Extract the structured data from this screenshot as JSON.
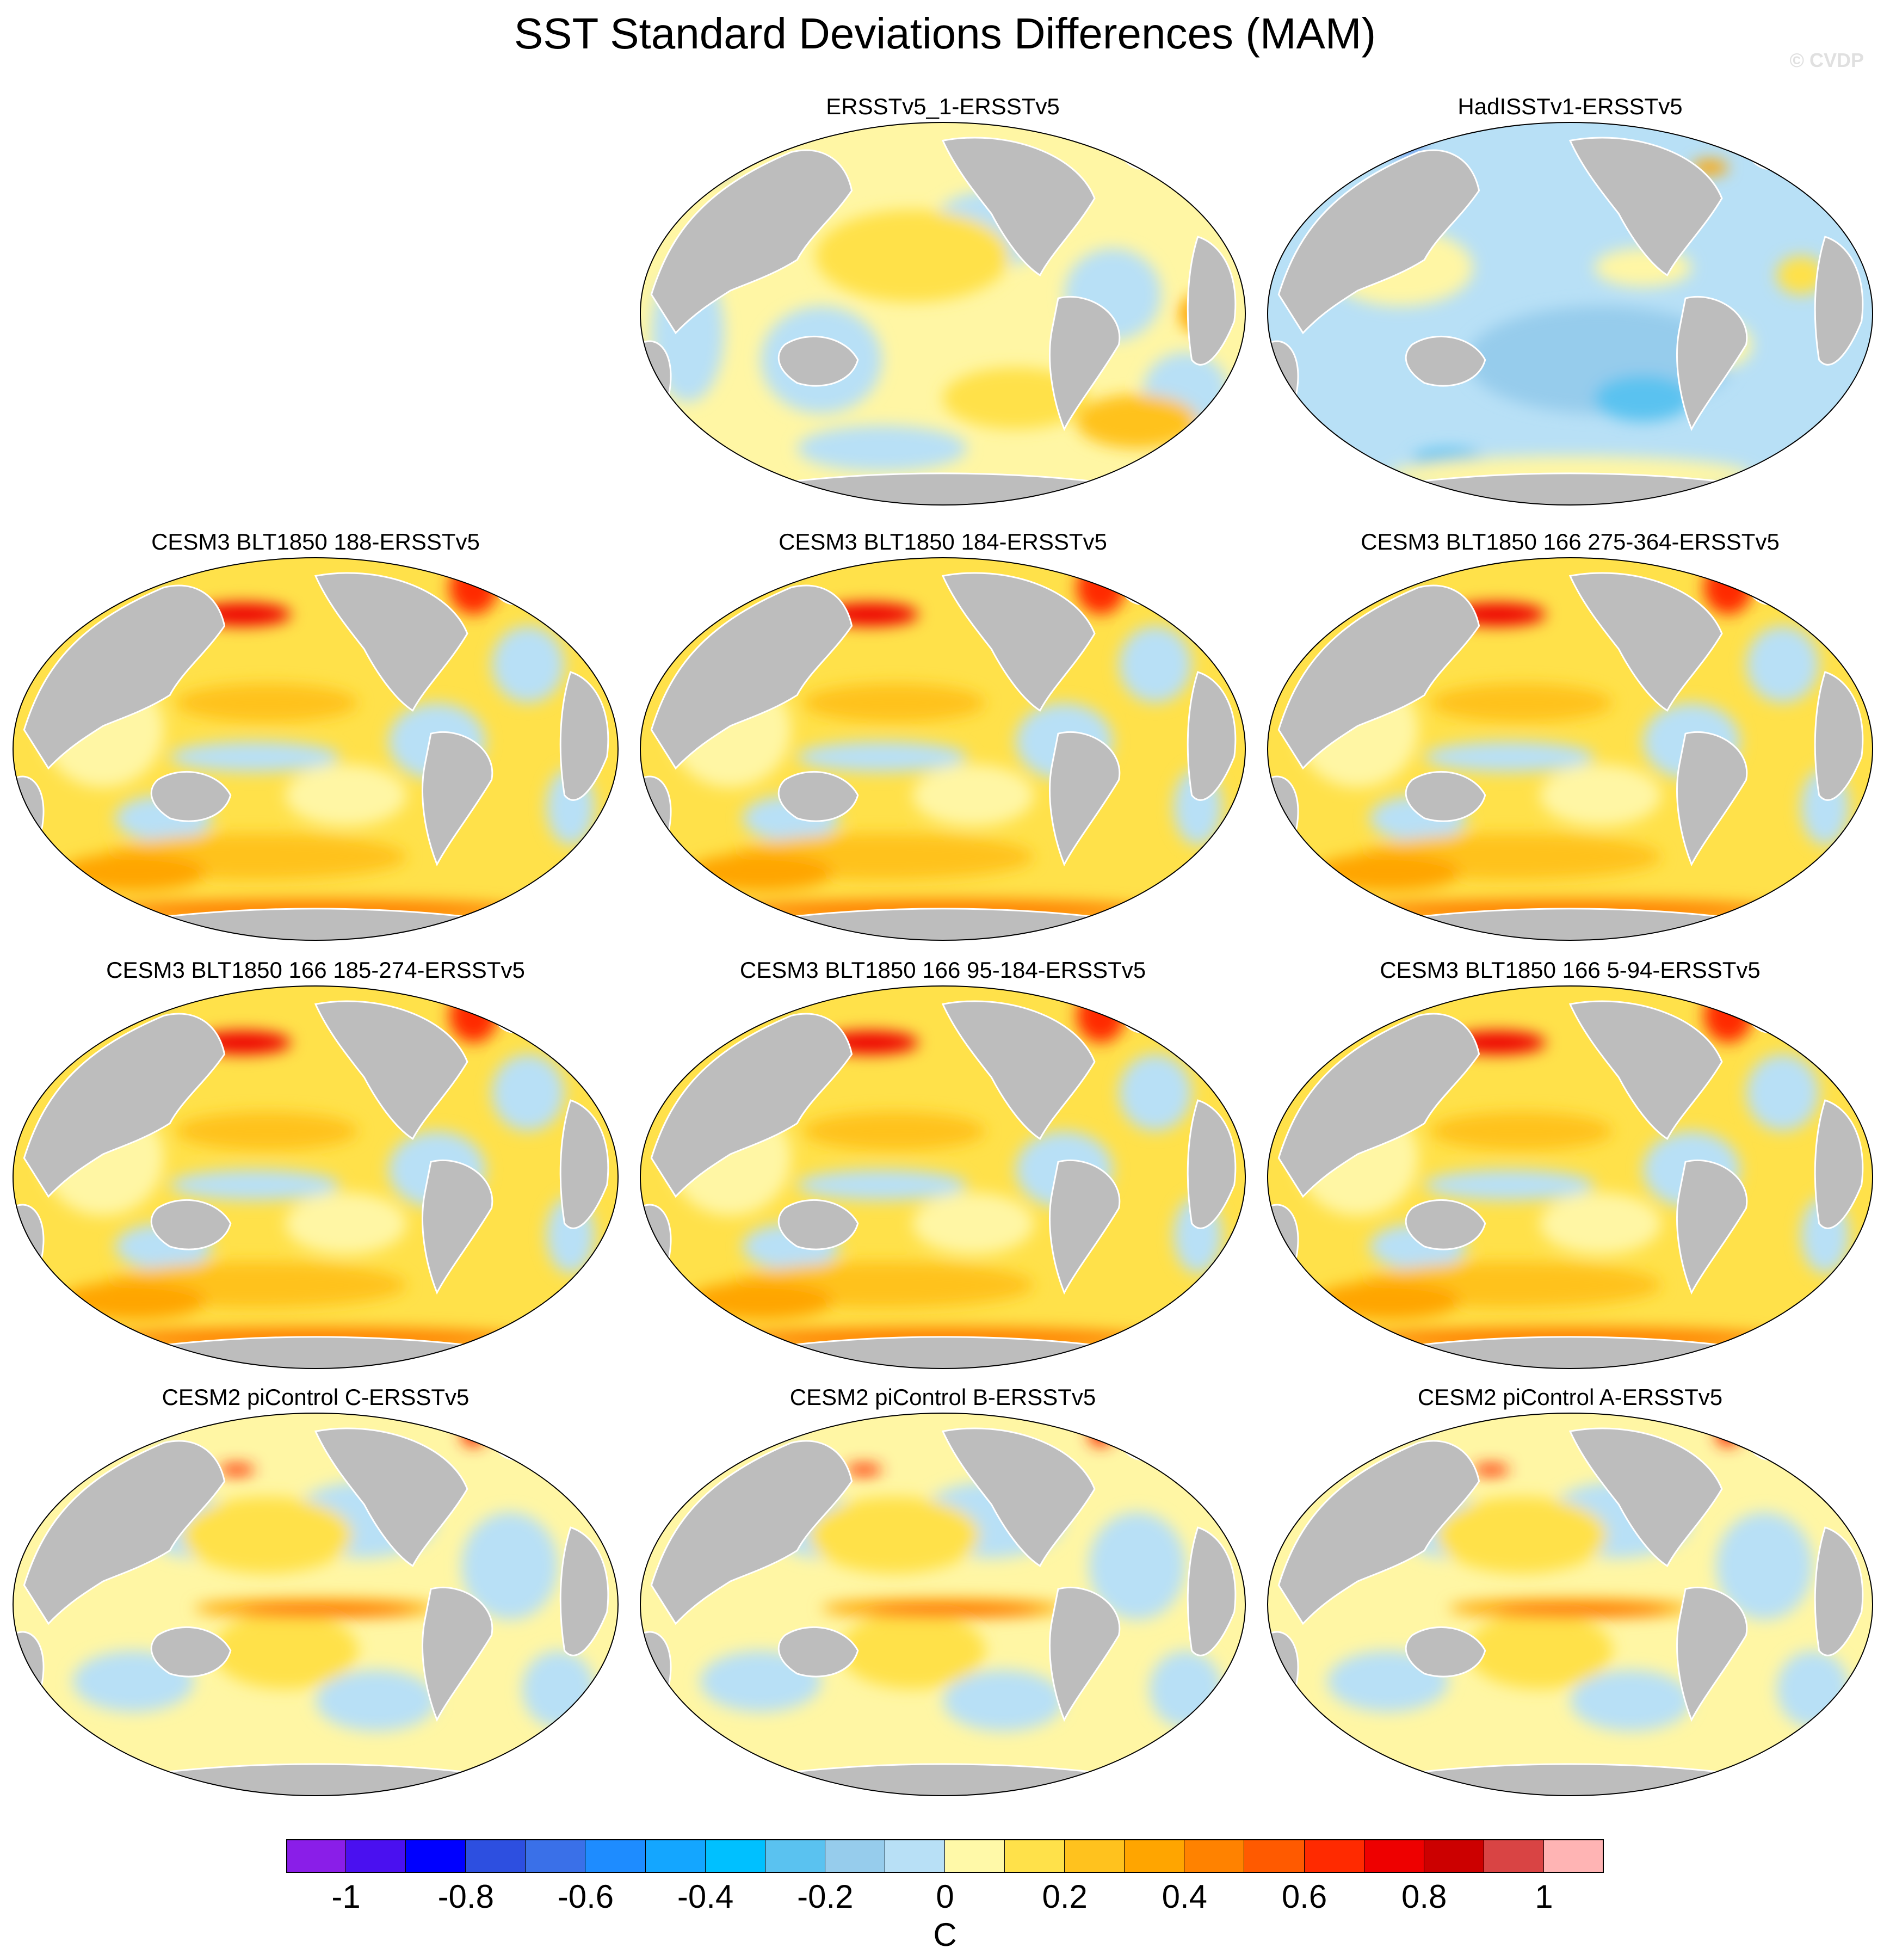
{
  "title": "SST Standard Deviations Differences (MAM)",
  "watermark": "© CVDP",
  "panels": [
    {
      "label": "ERSSTv5_1-ERSSTv5",
      "pattern": "obs-warm-mixed"
    },
    {
      "label": "HadISSTv1-ERSSTv5",
      "pattern": "obs-cool"
    },
    {
      "label": "CESM3 BLT1850 188-ERSSTv5",
      "pattern": "model-warm"
    },
    {
      "label": "CESM3 BLT1850 184-ERSSTv5",
      "pattern": "model-warm"
    },
    {
      "label": "CESM3 BLT1850 166 275-364-ERSSTv5",
      "pattern": "model-warm"
    },
    {
      "label": "CESM3 BLT1850 166 185-274-ERSSTv5",
      "pattern": "model-warm"
    },
    {
      "label": "CESM3 BLT1850 166 95-184-ERSSTv5",
      "pattern": "model-warm"
    },
    {
      "label": "CESM3 BLT1850 166 5-94-ERSSTv5",
      "pattern": "model-warm"
    },
    {
      "label": "CESM2 piControl C-ERSSTv5",
      "pattern": "cesm2-enso"
    },
    {
      "label": "CESM2 piControl B-ERSSTv5",
      "pattern": "cesm2-enso"
    },
    {
      "label": "CESM2 piControl A-ERSSTv5",
      "pattern": "cesm2-enso"
    }
  ],
  "colorbar": {
    "unit": "C",
    "levels": [
      -1.1,
      -1,
      -0.9,
      -0.8,
      -0.7,
      -0.6,
      -0.5,
      -0.4,
      -0.3,
      -0.2,
      -0.1,
      0,
      0.1,
      0.2,
      0.3,
      0.4,
      0.5,
      0.6,
      0.7,
      0.8,
      0.9,
      1,
      1.1
    ],
    "colors": [
      "#8a1ee8",
      "#4a10f0",
      "#0000ff",
      "#2d4fe0",
      "#3a70e8",
      "#1e8cff",
      "#14a6ff",
      "#00c0ff",
      "#5ac2f0",
      "#96ccec",
      "#b8e0f6",
      "#fff9a8",
      "#ffe14a",
      "#ffc21e",
      "#ffa500",
      "#ff8200",
      "#ff5a00",
      "#ff2a00",
      "#ee0000",
      "#cc0000",
      "#d94444",
      "#ffb4b4"
    ],
    "tick_labels": [
      "-1",
      "-0.8",
      "-0.6",
      "-0.4",
      "-0.2",
      "0",
      "0.2",
      "0.4",
      "0.6",
      "0.8",
      "1"
    ],
    "tick_values": [
      -1,
      -0.8,
      -0.6,
      -0.4,
      -0.2,
      0,
      0.2,
      0.4,
      0.6,
      0.8,
      1
    ]
  },
  "land_color": "#bdbdbd"
}
